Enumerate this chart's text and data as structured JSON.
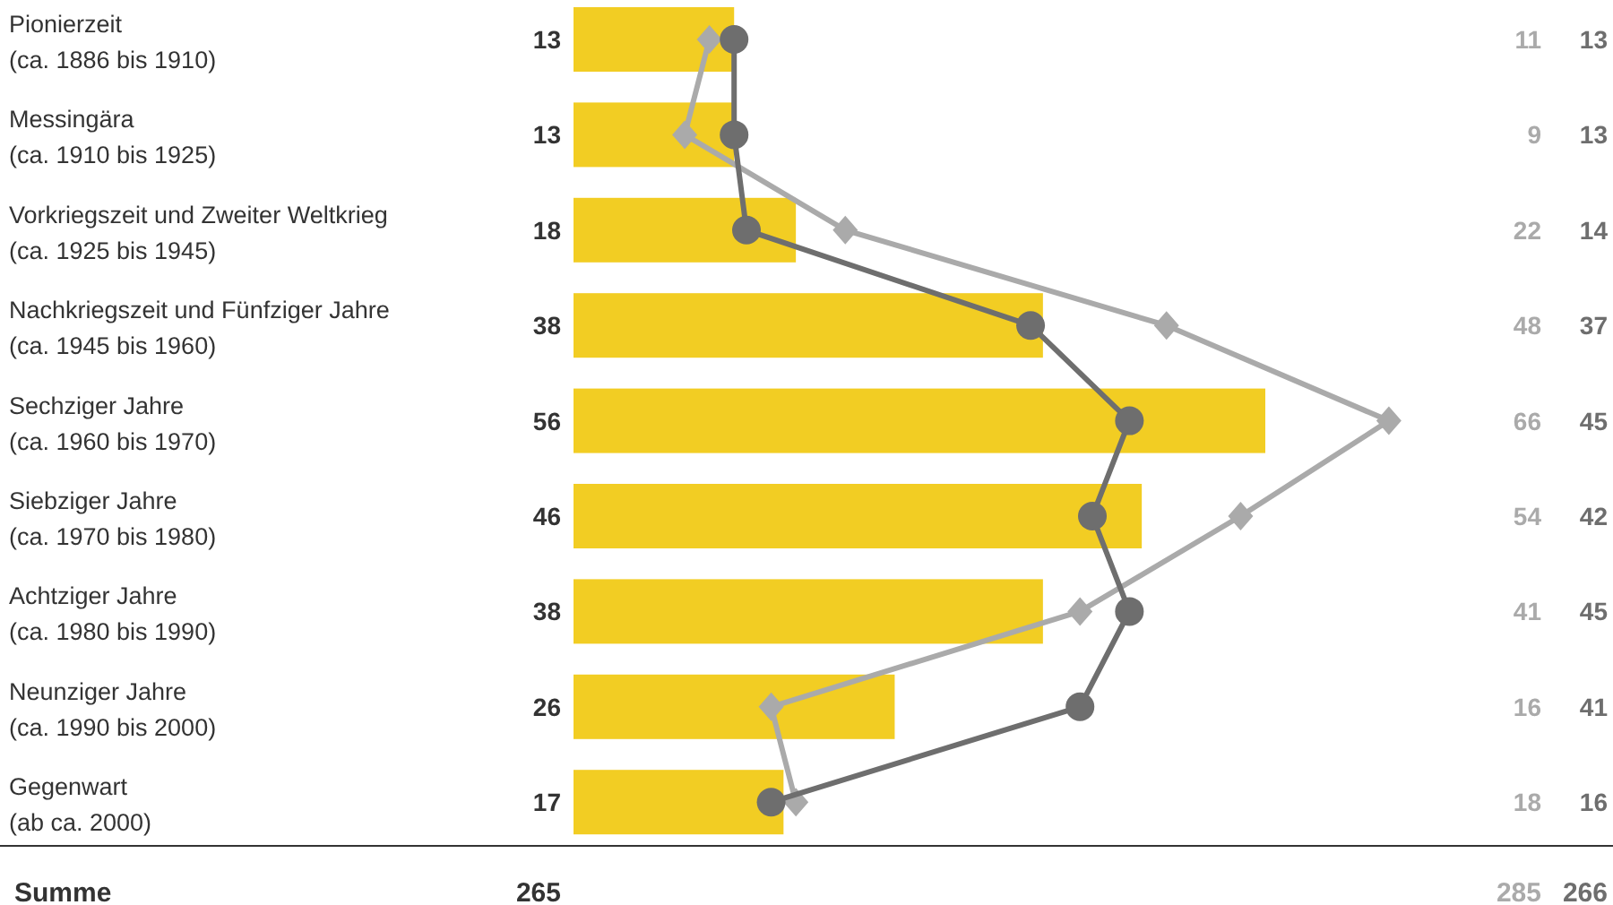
{
  "chart_data": {
    "type": "bar",
    "orientation": "horizontal",
    "data_labels": true,
    "grid": false,
    "categories": [
      "Pionierzeit\n(ca. 1886 bis 1910)",
      "Messingära\n(ca. 1910 bis 1925)",
      "Vorkriegszeit und Zweiter Weltkrieg\n(ca. 1925 bis 1945)",
      "Nachkriegszeit und Fünfziger Jahre\n(ca. 1945 bis 1960)",
      "Sechziger Jahre\n(ca. 1960 bis 1970)",
      "Siebziger Jahre\n(ca. 1970 bis 1980)",
      "Achtziger Jahre\n(ca. 1980 bis 1990)",
      "Neunziger Jahre\n(ca. 1990 bis 2000)",
      "Gegenwart\n(ab ca. 2000)"
    ],
    "series": [
      {
        "color": "#f2cd23",
        "values": [
          13,
          13,
          18,
          38,
          56,
          46,
          38,
          26,
          17
        ]
      },
      {
        "type": "line",
        "color": "#aaaaaa",
        "marker": "diamond",
        "line_style": "solid",
        "values": [
          11,
          9,
          22,
          48,
          66,
          54,
          41,
          16,
          18
        ]
      },
      {
        "type": "line",
        "color": "#6e6e6e",
        "marker": "circle",
        "line_style": "solid",
        "values": [
          13,
          13,
          14,
          37,
          45,
          42,
          45,
          41,
          16
        ]
      }
    ],
    "annotations": [
      "Summe",
      "265",
      "285",
      "266"
    ]
  }
}
